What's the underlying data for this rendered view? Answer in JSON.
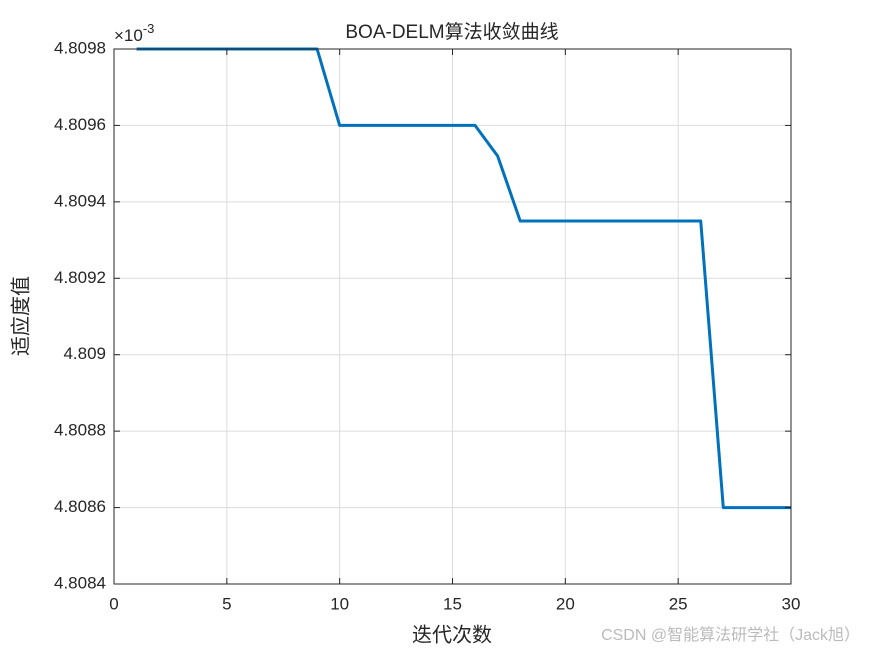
{
  "chart_data": {
    "type": "line",
    "title": "BOA-DELM算法收敛曲线",
    "x_label": "迭代次数",
    "y_label": "适应度值",
    "y_exponent": {
      "base": "×10",
      "power": "-3"
    },
    "x": [
      1,
      2,
      3,
      4,
      5,
      6,
      7,
      8,
      9,
      10,
      11,
      12,
      13,
      14,
      15,
      16,
      17,
      18,
      19,
      20,
      21,
      22,
      23,
      24,
      25,
      26,
      27,
      28,
      29,
      30
    ],
    "series": [
      {
        "color": "#0072bd",
        "values": [
          4.8098,
          4.8098,
          4.8098,
          4.8098,
          4.8098,
          4.8098,
          4.8098,
          4.8098,
          4.8098,
          4.8096,
          4.8096,
          4.8096,
          4.8096,
          4.8096,
          4.8096,
          4.8096,
          4.80952,
          4.80935,
          4.80935,
          4.80935,
          4.80935,
          4.80935,
          4.80935,
          4.80935,
          4.80935,
          4.80935,
          4.8086,
          4.8086,
          4.8086,
          4.8086
        ]
      }
    ],
    "xlim": [
      0,
      30
    ],
    "xticks": [
      0,
      5,
      10,
      15,
      20,
      25,
      30
    ],
    "ylim": [
      4.8084,
      4.8098
    ],
    "yticks": [
      4.8084,
      4.8086,
      4.8088,
      4.809,
      4.8092,
      4.8094,
      4.8096,
      4.8098
    ],
    "grid": true
  },
  "watermark": "CSDN @智能算法研学社（Jack旭）"
}
